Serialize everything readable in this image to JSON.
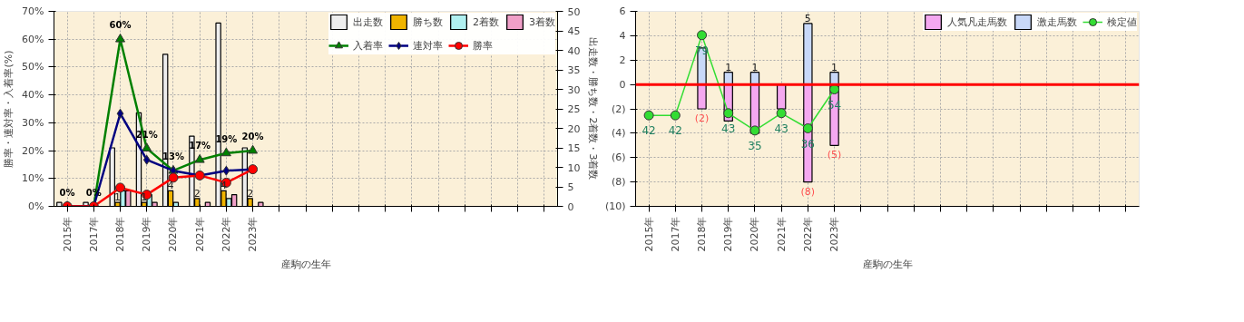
{
  "chart_data": [
    {
      "type": "bar",
      "xlabel": "産駒の生年",
      "ylabel": "勝率・連対率・入着率(%)",
      "y2label": "出走数・勝ち数・2着数・3着数",
      "categories": [
        "2015年",
        "2017年",
        "2018年",
        "2019年",
        "2020年",
        "2021年",
        "2022年",
        "2023年",
        null,
        null,
        null,
        null,
        null,
        null,
        null,
        null,
        null,
        null,
        null
      ],
      "ylim": [
        0,
        70
      ],
      "yticks": [
        {
          "value": 0,
          "label": "0%"
        },
        {
          "value": 10,
          "label": "10%"
        },
        {
          "value": 20,
          "label": "20%"
        },
        {
          "value": 30,
          "label": "30%"
        },
        {
          "value": 40,
          "label": "40%"
        },
        {
          "value": 50,
          "label": "50%"
        },
        {
          "value": 60,
          "label": "60%"
        },
        {
          "value": 70,
          "label": "70%"
        }
      ],
      "y2lim": [
        0,
        50
      ],
      "y2ticks": [
        0,
        5,
        10,
        15,
        20,
        25,
        30,
        35,
        40,
        45,
        50
      ],
      "grid": true,
      "legend": "top right",
      "series": [
        {
          "name": "出走数",
          "axis": "y2",
          "color": "#eeeeee",
          "values": [
            1,
            1,
            15,
            24,
            39,
            18,
            47,
            15,
            null,
            null,
            null,
            null,
            null,
            null,
            null,
            null,
            null,
            null,
            null
          ]
        },
        {
          "name": "勝ち数",
          "axis": "y2",
          "color": "#f0b400",
          "values": [
            null,
            null,
            1,
            1,
            4,
            2,
            4,
            2,
            null,
            null,
            null,
            null,
            null,
            null,
            null,
            null,
            null,
            null,
            null
          ],
          "value_labels": [
            null,
            null,
            "1",
            "1",
            "4",
            "2",
            "4",
            "2",
            null,
            null,
            null,
            null,
            null,
            null,
            null,
            null,
            null,
            null,
            null
          ]
        },
        {
          "name": "2着数",
          "axis": "y2",
          "color": "#b0f0f0",
          "values": [
            null,
            null,
            4,
            3,
            1,
            null,
            2,
            null,
            null,
            null,
            null,
            null,
            null,
            null,
            null,
            null,
            null,
            null,
            null
          ]
        },
        {
          "name": "3着数",
          "axis": "y2",
          "color": "#f0a0c8",
          "values": [
            null,
            null,
            4,
            1,
            null,
            1,
            3,
            1,
            null,
            null,
            null,
            null,
            null,
            null,
            null,
            null,
            null,
            null,
            null
          ]
        },
        {
          "name": "入着率",
          "type": "line",
          "color": "#008000",
          "marker": "triangle",
          "values": [
            0,
            0,
            60,
            20.8,
            12.8,
            16.7,
            19.1,
            20,
            null,
            null,
            null,
            null,
            null,
            null,
            null,
            null,
            null,
            null,
            null
          ],
          "value_labels": [
            "0%",
            "0%",
            "60%",
            "21%",
            "13%",
            "17%",
            "19%",
            "20%",
            null,
            null,
            null,
            null,
            null,
            null,
            null,
            null,
            null,
            null,
            null
          ]
        },
        {
          "name": "連対率",
          "type": "line",
          "color": "#000080",
          "marker": "diamond",
          "values": [
            0,
            0,
            33.3,
            16.7,
            12.8,
            11.1,
            12.8,
            13.3,
            null,
            null,
            null,
            null,
            null,
            null,
            null,
            null,
            null,
            null,
            null
          ]
        },
        {
          "name": "勝率",
          "type": "line",
          "color": "#ff0000",
          "marker": "circle",
          "values": [
            0,
            0,
            6.7,
            4.2,
            10.3,
            11.1,
            8.5,
            13.3,
            null,
            null,
            null,
            null,
            null,
            null,
            null,
            null,
            null,
            null,
            null
          ]
        }
      ]
    },
    {
      "type": "bar",
      "xlabel": "産駒の生年",
      "stacked": true,
      "categories": [
        "2015年",
        "2017年",
        "2018年",
        "2019年",
        "2020年",
        "2021年",
        "2022年",
        "2023年",
        null,
        null,
        null,
        null,
        null,
        null,
        null,
        null,
        null,
        null,
        null
      ],
      "ylim": [
        -10,
        6
      ],
      "yticks": [
        {
          "value": -10,
          "label": "(10)"
        },
        {
          "value": -8,
          "label": "(8)"
        },
        {
          "value": -6,
          "label": "(6)"
        },
        {
          "value": -4,
          "label": "(4)"
        },
        {
          "value": -2,
          "label": "(2)"
        },
        0,
        2,
        4,
        6
      ],
      "y2lim": [
        0,
        90
      ],
      "grid": true,
      "legend": "top right",
      "ref_lines": [
        {
          "axis": "y",
          "value": 0,
          "color": "#ff0000"
        }
      ],
      "series": [
        {
          "name": "人気凡走馬数",
          "color": "#f4a8f0",
          "values": [
            null,
            null,
            -2,
            -3,
            -4,
            -2,
            -8,
            -5,
            null,
            null,
            null,
            null,
            null,
            null,
            null,
            null,
            null,
            null,
            null
          ],
          "value_labels": [
            null,
            null,
            "(2)",
            null,
            null,
            null,
            "(8)",
            "(5)",
            null,
            null,
            null,
            null,
            null,
            null,
            null,
            null,
            null,
            null,
            null
          ]
        },
        {
          "name": "激走馬数",
          "color": "#c8d8f8",
          "values": [
            null,
            null,
            3,
            1,
            1,
            null,
            5,
            1,
            null,
            null,
            null,
            null,
            null,
            null,
            null,
            null,
            null,
            null,
            null
          ],
          "value_labels": [
            null,
            null,
            null,
            "1",
            "1",
            null,
            "5",
            "1",
            null,
            null,
            null,
            null,
            null,
            null,
            null,
            null,
            null,
            null,
            null
          ]
        },
        {
          "name": "検定値",
          "type": "line",
          "axis": "y2",
          "color": "#33dd33",
          "marker": "circle",
          "values": [
            42,
            42,
            79,
            43,
            35,
            43,
            36,
            54,
            null,
            null,
            null,
            null,
            null,
            null,
            null,
            null,
            null,
            null,
            null
          ],
          "value_labels": [
            "42",
            "42",
            "79",
            "43",
            "35",
            "43",
            "36",
            "54",
            null,
            null,
            null,
            null,
            null,
            null,
            null,
            null,
            null,
            null,
            null
          ]
        }
      ]
    }
  ]
}
